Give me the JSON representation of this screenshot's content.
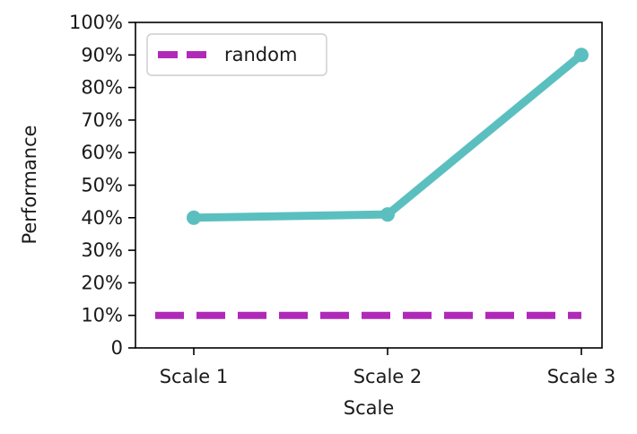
{
  "chart_data": {
    "type": "line",
    "title": "",
    "xlabel": "Scale",
    "ylabel": "Performance",
    "categories": [
      "Scale 1",
      "Scale 2",
      "Scale 3"
    ],
    "y_tick_labels": [
      "0",
      "10%",
      "20%",
      "30%",
      "40%",
      "50%",
      "60%",
      "70%",
      "80%",
      "90%",
      "100%"
    ],
    "y_ticks": [
      0,
      10,
      20,
      30,
      40,
      50,
      60,
      70,
      80,
      90,
      100
    ],
    "ylim": [
      0,
      100
    ],
    "grid": false,
    "legend_position": "top-left",
    "series": [
      {
        "values": [
          40,
          41,
          90
        ],
        "color": "#5bbfbf",
        "style": "solid",
        "markers": true
      },
      {
        "name": "random",
        "values": [
          10,
          10,
          10
        ],
        "color": "#b02ab8",
        "style": "dashed",
        "markers": false
      }
    ]
  }
}
